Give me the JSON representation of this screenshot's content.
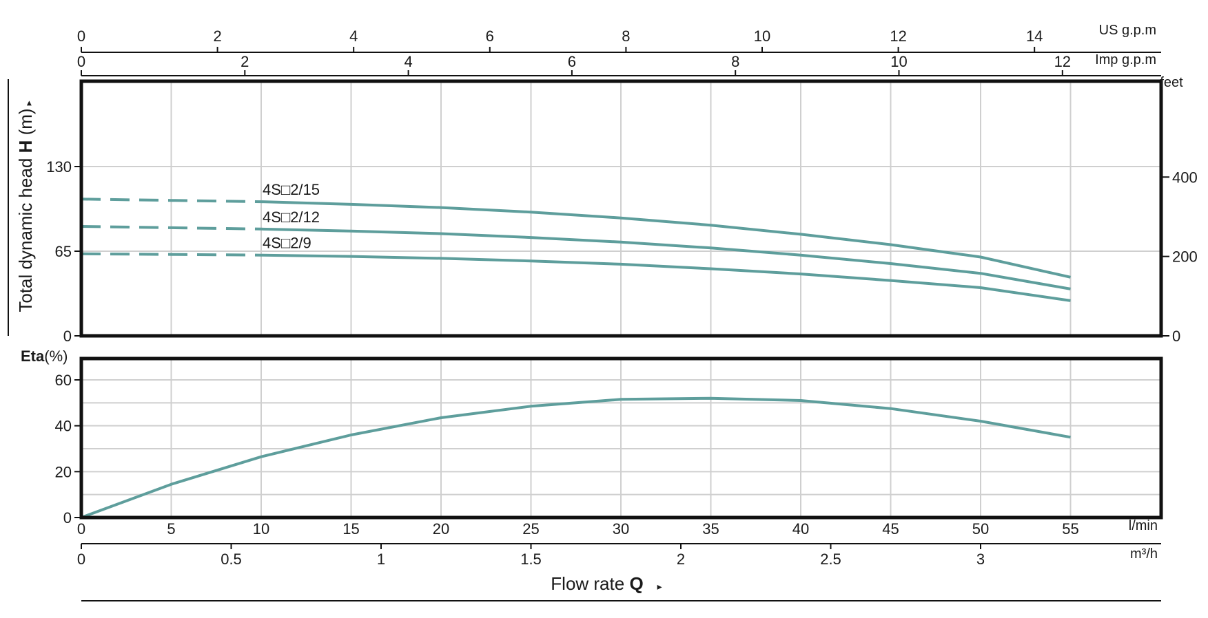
{
  "colors": {
    "curve": "#5e9e9c",
    "grid": "#cfcfcf",
    "frame": "#111111"
  },
  "labels": {
    "us_gpm": "US g.p.m",
    "imp_gpm": "Imp g.p.m",
    "feet": "feet",
    "lmin": "l/min",
    "m3h": "m³/h",
    "eta_bold": "Eta",
    "eta_unit": "(%)",
    "yaxis_prefix": "Total dynamic head ",
    "yaxis_bold": "H",
    "yaxis_unit": " (m)",
    "yaxis_arrow": "▸",
    "flow_prefix": "Flow  rate  ",
    "flow_bold": "Q",
    "flow_arrow": "▸"
  },
  "chart_data": [
    {
      "type": "line",
      "panel": "head",
      "xlabel": "l/min",
      "ylabel": "Total dynamic head H (m)",
      "xlim": [
        0,
        60
      ],
      "ylim": [
        0,
        195
      ],
      "grid": true,
      "x_ticks": [
        0,
        5,
        10,
        15,
        20,
        25,
        30,
        35,
        40,
        45,
        50,
        55
      ],
      "y_ticks_left": [
        0,
        65,
        130
      ],
      "y_ticks_right_feet": [
        0,
        200,
        400
      ],
      "top_axis_us_gpm": [
        0,
        2,
        4,
        6,
        8,
        10,
        12,
        14
      ],
      "top_axis_imp_gpm": [
        0,
        2,
        4,
        6,
        8,
        10,
        12
      ],
      "dashed_until_x": 10,
      "series": [
        {
          "name": "4S□2/15",
          "x": [
            0,
            5,
            10,
            15,
            20,
            25,
            30,
            35,
            40,
            45,
            50,
            55
          ],
          "y": [
            105,
            104,
            103,
            101,
            98.5,
            95,
            90.5,
            85,
            78,
            70,
            60.5,
            45
          ]
        },
        {
          "name": "4S□2/12",
          "x": [
            0,
            5,
            10,
            15,
            20,
            25,
            30,
            35,
            40,
            45,
            50,
            55
          ],
          "y": [
            84,
            83,
            82,
            80.5,
            78.5,
            75.5,
            72,
            67.5,
            62,
            55.5,
            48,
            36
          ]
        },
        {
          "name": "4S□2/9",
          "x": [
            0,
            5,
            10,
            15,
            20,
            25,
            30,
            35,
            40,
            45,
            50,
            55
          ],
          "y": [
            63,
            62.5,
            62,
            61,
            59.5,
            57.5,
            55,
            51.5,
            47.5,
            42.5,
            37,
            27
          ]
        }
      ]
    },
    {
      "type": "line",
      "panel": "efficiency",
      "xlabel": "Flow rate Q",
      "ylabel": "Eta(%)",
      "xlim": [
        0,
        60
      ],
      "ylim": [
        0,
        70
      ],
      "grid": true,
      "x_ticks_lmin": [
        0,
        5,
        10,
        15,
        20,
        25,
        30,
        35,
        40,
        45,
        50,
        55
      ],
      "x_ticks_m3h": [
        0,
        0.5,
        1,
        1.5,
        2,
        2.5,
        3
      ],
      "y_ticks": [
        0,
        20,
        40,
        60
      ],
      "series": [
        {
          "name": "",
          "x": [
            0,
            5,
            10,
            15,
            20,
            25,
            30,
            35,
            40,
            45,
            50,
            55
          ],
          "y": [
            0,
            14.5,
            26.5,
            36,
            43.5,
            48.5,
            51.5,
            52,
            51,
            47.5,
            42,
            35
          ]
        }
      ]
    }
  ]
}
